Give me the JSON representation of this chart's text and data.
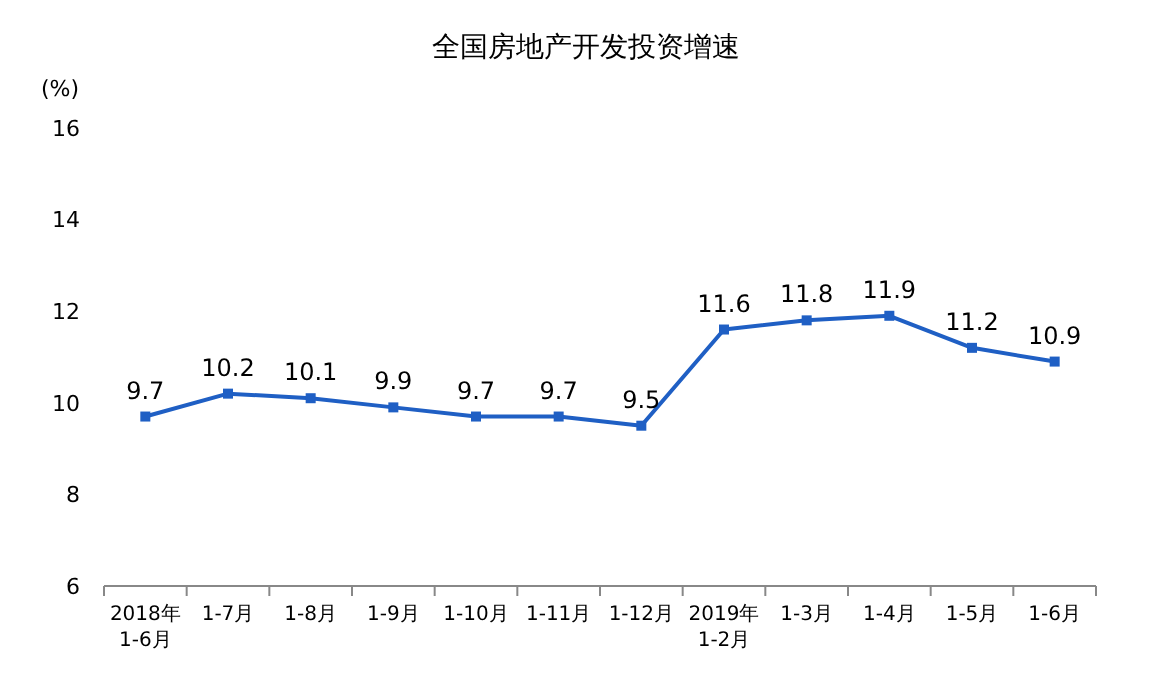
{
  "chart_data": {
    "type": "line",
    "title": "全国房地产开发投资增速",
    "ylabel": "(%)",
    "categories": [
      "2018年\n1-6月",
      "1-7月",
      "1-8月",
      "1-9月",
      "1-10月",
      "1-11月",
      "1-12月",
      "2019年\n1-2月",
      "1-3月",
      "1-4月",
      "1-5月",
      "1-6月"
    ],
    "series": [
      {
        "color": "#1f5fc4",
        "values": [
          9.7,
          10.2,
          10.1,
          9.9,
          9.7,
          9.7,
          9.5,
          11.6,
          11.8,
          11.9,
          11.2,
          10.9
        ]
      }
    ],
    "ylim": [
      6,
      16
    ],
    "yticks": [
      6,
      8,
      10,
      12,
      14,
      16
    ],
    "grid": false,
    "marker": "square",
    "line_style": "solid",
    "data_labels": true
  }
}
